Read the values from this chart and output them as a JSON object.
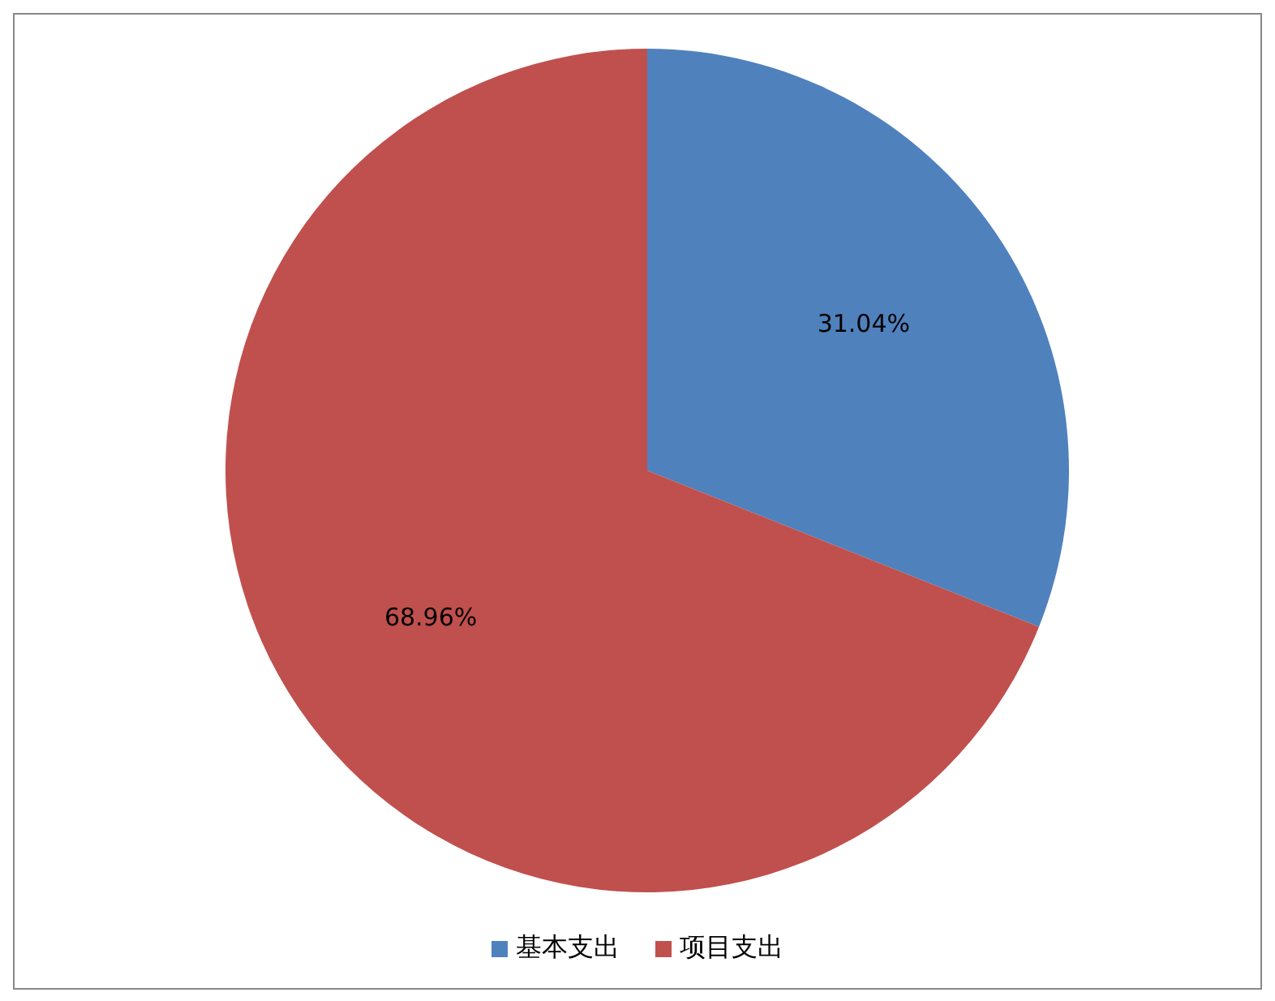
{
  "chart_data": {
    "type": "pie",
    "categories": [
      "基本支出",
      "项目支出"
    ],
    "values": [
      31.04,
      68.96
    ],
    "colors": [
      "#4f81bd",
      "#c0504d"
    ],
    "value_labels": [
      "31.04%",
      "68.96%"
    ],
    "legend": "bottom"
  }
}
